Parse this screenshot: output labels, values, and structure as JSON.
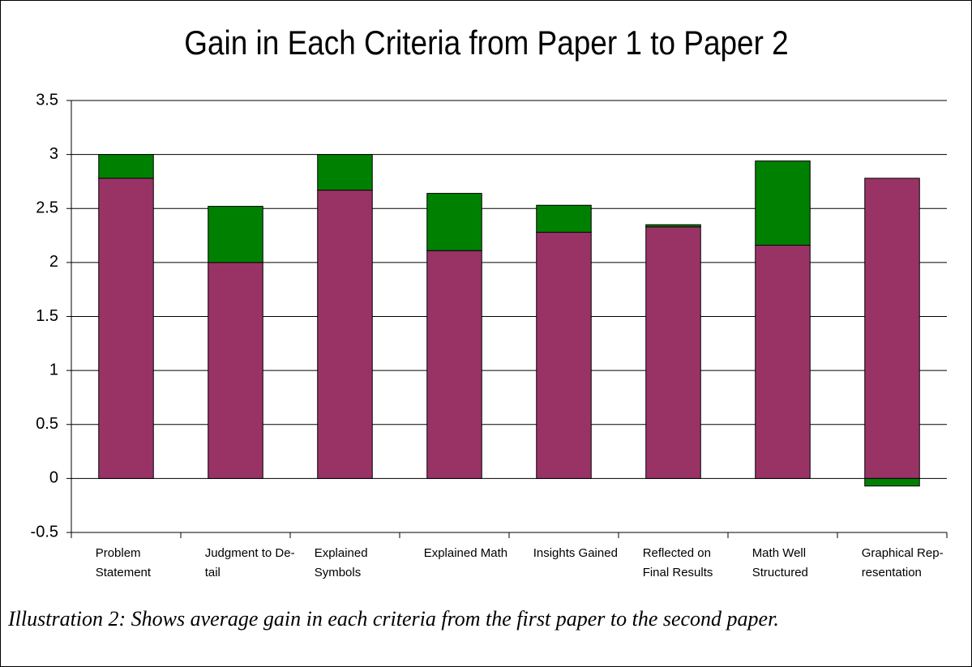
{
  "chart_data": {
    "type": "stacked-bar",
    "title": "Gain in Each Criteria from Paper 1 to Paper 2",
    "categories": [
      [
        "Problem",
        "Statement"
      ],
      [
        "Judgment to De-",
        "tail"
      ],
      [
        "Explained",
        "Symbols"
      ],
      [
        "Explained Math"
      ],
      [
        "Insights Gained"
      ],
      [
        "Reflected on",
        "Final Results"
      ],
      [
        "Math Well",
        "Structured"
      ],
      [
        "Graphical Rep-",
        "resentation"
      ]
    ],
    "series": [
      {
        "color": "#993366",
        "values": [
          2.78,
          2.0,
          2.67,
          2.11,
          2.28,
          2.33,
          2.16,
          2.78
        ]
      },
      {
        "color": "#008000",
        "values": [
          0.22,
          0.52,
          0.33,
          0.53,
          0.25,
          0.02,
          0.78,
          -0.07
        ]
      }
    ],
    "ylim": [
      -0.5,
      3.5
    ],
    "yticks": [
      -0.5,
      0,
      0.5,
      1,
      1.5,
      2,
      2.5,
      3,
      3.5
    ],
    "grid": true,
    "caption": "Illustration 2: Shows average gain in each criteria from the first paper to the second paper."
  }
}
